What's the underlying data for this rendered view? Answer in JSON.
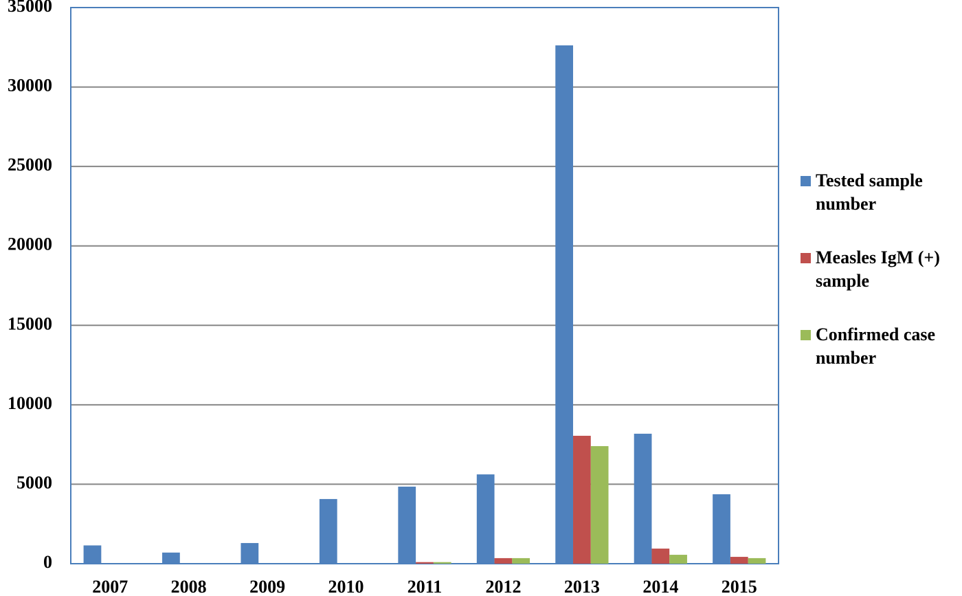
{
  "chart_data": {
    "type": "bar",
    "categories": [
      "2007",
      "2008",
      "2009",
      "2010",
      "2011",
      "2012",
      "2013",
      "2014",
      "2015"
    ],
    "series": [
      {
        "name": "Tested sample number",
        "color": "#4f81bd",
        "values": [
          1150,
          700,
          1300,
          4070,
          4850,
          5620,
          32620,
          8180,
          4370
        ]
      },
      {
        "name": "Measles IgM (+) sample",
        "color": "#c0504d",
        "values": [
          0,
          0,
          0,
          0,
          100,
          350,
          8050,
          950,
          430
        ]
      },
      {
        "name": "Confirmed case number",
        "color": "#9bbb59",
        "values": [
          0,
          0,
          0,
          0,
          100,
          350,
          7400,
          560,
          350
        ]
      }
    ],
    "ylim": [
      0,
      35000
    ],
    "yticks": [
      0,
      5000,
      10000,
      15000,
      20000,
      25000,
      30000,
      35000
    ],
    "grid": true,
    "legend": "right"
  }
}
